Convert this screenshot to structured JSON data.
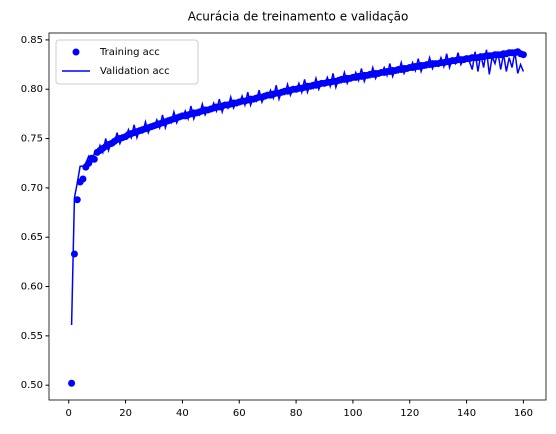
{
  "chart_data": {
    "type": "line",
    "title": "Acurácia de treinamento e validação",
    "x": [
      1,
      2,
      3,
      4,
      5,
      6,
      7,
      8,
      9,
      10,
      11,
      12,
      13,
      14,
      15,
      16,
      17,
      18,
      19,
      20,
      21,
      22,
      23,
      24,
      25,
      26,
      27,
      28,
      29,
      30,
      31,
      32,
      33,
      34,
      35,
      36,
      37,
      38,
      39,
      40,
      41,
      42,
      43,
      44,
      45,
      46,
      47,
      48,
      49,
      50,
      51,
      52,
      53,
      54,
      55,
      56,
      57,
      58,
      59,
      60,
      61,
      62,
      63,
      64,
      65,
      66,
      67,
      68,
      69,
      70,
      71,
      72,
      73,
      74,
      75,
      76,
      77,
      78,
      79,
      80,
      81,
      82,
      83,
      84,
      85,
      86,
      87,
      88,
      89,
      90,
      91,
      92,
      93,
      94,
      95,
      96,
      97,
      98,
      99,
      100,
      101,
      102,
      103,
      104,
      105,
      106,
      107,
      108,
      109,
      110,
      111,
      112,
      113,
      114,
      115,
      116,
      117,
      118,
      119,
      120,
      121,
      122,
      123,
      124,
      125,
      126,
      127,
      128,
      129,
      130,
      131,
      132,
      133,
      134,
      135,
      136,
      137,
      138,
      139,
      140,
      141,
      142,
      143,
      144,
      145,
      146,
      147,
      148,
      149,
      150,
      151,
      152,
      153,
      154,
      155,
      156,
      157,
      158,
      159,
      160
    ],
    "series": [
      {
        "name": "Training acc",
        "color": "#0000ff",
        "marker": "circle",
        "values": [
          0.502,
          0.633,
          0.688,
          0.706,
          0.709,
          0.721,
          0.725,
          0.73,
          0.729,
          0.736,
          0.738,
          0.74,
          0.742,
          0.744,
          0.745,
          0.747,
          0.749,
          0.75,
          0.751,
          0.752,
          0.754,
          0.755,
          0.756,
          0.757,
          0.758,
          0.759,
          0.76,
          0.761,
          0.762,
          0.763,
          0.764,
          0.765,
          0.766,
          0.767,
          0.768,
          0.769,
          0.77,
          0.771,
          0.772,
          0.773,
          0.773,
          0.774,
          0.775,
          0.776,
          0.776,
          0.777,
          0.778,
          0.779,
          0.779,
          0.78,
          0.781,
          0.782,
          0.782,
          0.783,
          0.784,
          0.784,
          0.785,
          0.786,
          0.786,
          0.787,
          0.788,
          0.788,
          0.789,
          0.79,
          0.79,
          0.791,
          0.792,
          0.792,
          0.793,
          0.794,
          0.794,
          0.795,
          0.796,
          0.796,
          0.797,
          0.798,
          0.798,
          0.799,
          0.8,
          0.8,
          0.801,
          0.801,
          0.802,
          0.803,
          0.803,
          0.804,
          0.804,
          0.805,
          0.806,
          0.806,
          0.807,
          0.807,
          0.808,
          0.808,
          0.809,
          0.81,
          0.81,
          0.811,
          0.811,
          0.812,
          0.812,
          0.813,
          0.813,
          0.814,
          0.814,
          0.815,
          0.815,
          0.816,
          0.816,
          0.817,
          0.817,
          0.818,
          0.818,
          0.819,
          0.819,
          0.82,
          0.82,
          0.821,
          0.821,
          0.822,
          0.822,
          0.823,
          0.823,
          0.824,
          0.824,
          0.825,
          0.825,
          0.826,
          0.826,
          0.826,
          0.827,
          0.827,
          0.828,
          0.828,
          0.829,
          0.829,
          0.83,
          0.83,
          0.83,
          0.831,
          0.831,
          0.832,
          0.832,
          0.832,
          0.833,
          0.833,
          0.834,
          0.834,
          0.834,
          0.835,
          0.835,
          0.835,
          0.836,
          0.836,
          0.837,
          0.837,
          0.837,
          0.838,
          0.836,
          0.835
        ]
      },
      {
        "name": "Validation acc",
        "color": "#0000ff",
        "marker": "none",
        "values": [
          0.561,
          0.69,
          0.705,
          0.722,
          0.722,
          0.725,
          0.732,
          0.725,
          0.735,
          0.734,
          0.743,
          0.736,
          0.75,
          0.738,
          0.747,
          0.744,
          0.756,
          0.745,
          0.752,
          0.75,
          0.759,
          0.751,
          0.764,
          0.751,
          0.76,
          0.756,
          0.767,
          0.756,
          0.763,
          0.761,
          0.769,
          0.761,
          0.774,
          0.761,
          0.77,
          0.766,
          0.777,
          0.766,
          0.773,
          0.771,
          0.778,
          0.77,
          0.783,
          0.77,
          0.778,
          0.774,
          0.785,
          0.774,
          0.78,
          0.778,
          0.786,
          0.778,
          0.79,
          0.777,
          0.786,
          0.781,
          0.792,
          0.781,
          0.787,
          0.785,
          0.793,
          0.784,
          0.797,
          0.784,
          0.792,
          0.788,
          0.799,
          0.787,
          0.794,
          0.792,
          0.799,
          0.791,
          0.804,
          0.79,
          0.799,
          0.795,
          0.805,
          0.794,
          0.801,
          0.798,
          0.806,
          0.797,
          0.81,
          0.797,
          0.805,
          0.801,
          0.811,
          0.8,
          0.807,
          0.804,
          0.812,
          0.803,
          0.816,
          0.802,
          0.811,
          0.807,
          0.817,
          0.806,
          0.812,
          0.81,
          0.817,
          0.809,
          0.821,
          0.808,
          0.816,
          0.812,
          0.822,
          0.811,
          0.817,
          0.815,
          0.822,
          0.814,
          0.826,
          0.813,
          0.821,
          0.817,
          0.827,
          0.816,
          0.822,
          0.82,
          0.827,
          0.819,
          0.831,
          0.818,
          0.826,
          0.822,
          0.832,
          0.821,
          0.827,
          0.824,
          0.832,
          0.823,
          0.836,
          0.822,
          0.831,
          0.826,
          0.837,
          0.825,
          0.831,
          0.829,
          0.828,
          0.82,
          0.838,
          0.818,
          0.835,
          0.822,
          0.84,
          0.815,
          0.833,
          0.826,
          0.838,
          0.82,
          0.836,
          0.818,
          0.832,
          0.822,
          0.838,
          0.816,
          0.825,
          0.818
        ]
      }
    ],
    "xlim": [
      -6.95,
      167.95
    ],
    "ylim": [
      0.485,
      0.857
    ],
    "xticks": [
      0,
      20,
      40,
      60,
      80,
      100,
      120,
      140,
      160
    ],
    "yticks": [
      {
        "value": 0.5,
        "label": "0.50"
      },
      0.55,
      {
        "value": 0.6,
        "label": "0.60"
      },
      0.65,
      {
        "value": 0.7,
        "label": "0.70"
      },
      0.75,
      {
        "value": 0.8,
        "label": "0.80"
      },
      0.85
    ],
    "legend": "upper left",
    "grid": false
  }
}
